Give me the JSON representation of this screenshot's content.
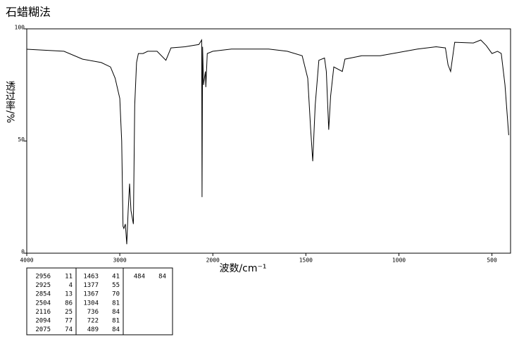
{
  "chart_data": {
    "type": "line",
    "title": "石蜡糊法",
    "xlabel": "波数/cm⁻¹",
    "ylabel": "透过率/%",
    "x": [
      4000,
      3600,
      3400,
      3200,
      3100,
      3050,
      3000,
      2980,
      2965,
      2956,
      2940,
      2925,
      2910,
      2895,
      2880,
      2854,
      2840,
      2820,
      2800,
      2750,
      2700,
      2600,
      2504,
      2450,
      2300,
      2150,
      2120,
      2116,
      2110,
      2100,
      2094,
      2080,
      2075,
      2060,
      2000,
      1900,
      1700,
      1600,
      1520,
      1490,
      1475,
      1463,
      1450,
      1430,
      1400,
      1390,
      1377,
      1367,
      1350,
      1304,
      1290,
      1200,
      1100,
      1000,
      900,
      800,
      750,
      736,
      722,
      700,
      600,
      560,
      530,
      500,
      470,
      450,
      430,
      410
    ],
    "series": [
      {
        "color": "#000000",
        "values": [
          90.9,
          90,
          86.5,
          85,
          83,
          78,
          69,
          50,
          12,
          11,
          13,
          4,
          19,
          31,
          19,
          13,
          66,
          85,
          89,
          89,
          90,
          90,
          86,
          91.5,
          92,
          93,
          95,
          25,
          92,
          75,
          77,
          81,
          74,
          89,
          90,
          91,
          91,
          90,
          88,
          78,
          56,
          41,
          66,
          86,
          87,
          81,
          55,
          70,
          83,
          81,
          86.5,
          88,
          88,
          89.5,
          91,
          92,
          91.5,
          84,
          81,
          94,
          93.7,
          95,
          92.5,
          89,
          90,
          89,
          75,
          52.6
        ]
      }
    ],
    "xlim": [
      4000,
      400
    ],
    "ylim": [
      0,
      100
    ],
    "xticks": [
      4000,
      3000,
      2000,
      1500,
      1000,
      500
    ],
    "yticks": [
      0,
      50,
      100
    ],
    "x_scale_break": 2000
  },
  "peak_table": {
    "columns": [
      {
        "wavenumbers": [
          2956,
          2925,
          2854,
          2504,
          2116,
          2094,
          2075
        ],
        "transmittance": [
          11,
          4,
          13,
          86,
          25,
          77,
          74
        ]
      },
      {
        "wavenumbers": [
          1463,
          1377,
          1367,
          1304,
          736,
          722,
          489
        ],
        "transmittance": [
          41,
          55,
          70,
          81,
          84,
          81,
          84
        ]
      },
      {
        "wavenumbers": [
          484
        ],
        "transmittance": [
          84
        ]
      }
    ]
  }
}
